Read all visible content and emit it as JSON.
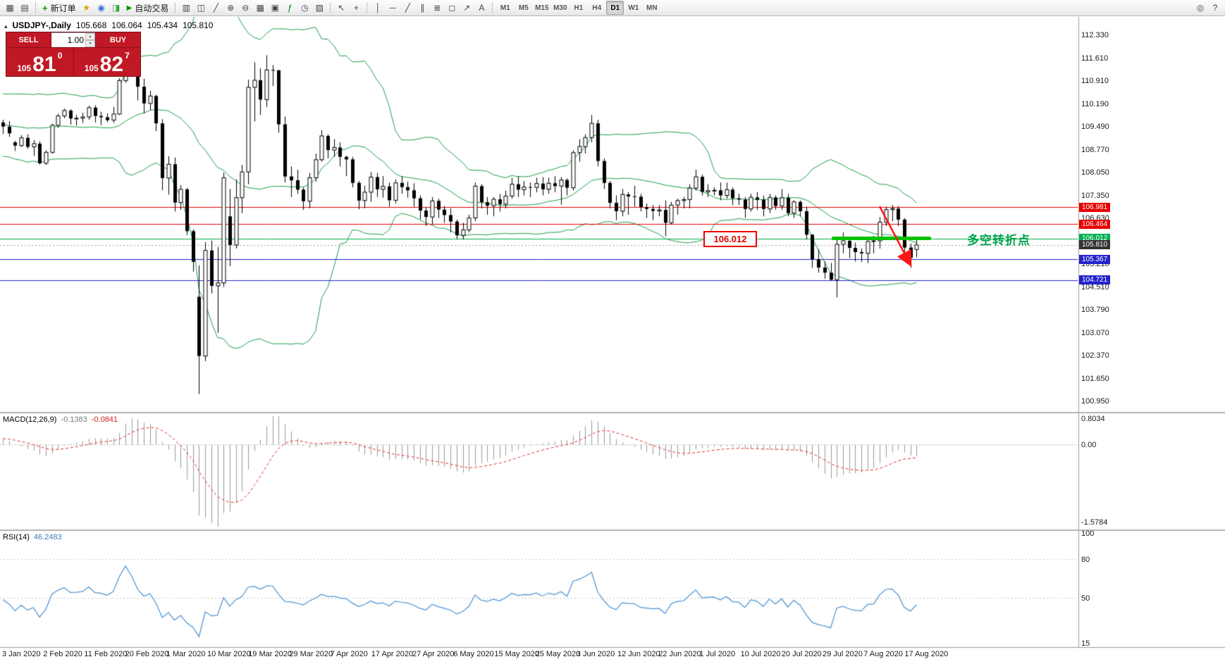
{
  "toolbar": {
    "left_icons": [
      "new-chart-icon",
      "chart-profile-icon"
    ],
    "new_order": "新订单",
    "mid_icons": [
      "favorites-icon",
      "market-watch-icon",
      "data-window-icon"
    ],
    "autotrade": "自动交易",
    "chart_icons": [
      "bar-chart-icon",
      "candlestick-icon",
      "line-chart-icon",
      "zoom-in-icon",
      "zoom-out-icon",
      "tile-windows-icon",
      "auto-arrange-icon",
      "indicators-icon",
      "periods-icon",
      "templates-icon"
    ],
    "cursor_icons": [
      "cursor-icon",
      "crosshair-icon"
    ],
    "draw_icons": [
      "vertical-line-icon",
      "horizontal-line-icon",
      "trendline-icon",
      "equidistant-channel-icon",
      "fibonacci-icon",
      "shapes-icon",
      "arrows-icon",
      "text-icon"
    ],
    "timeframes": [
      "M1",
      "M5",
      "M15",
      "M30",
      "H1",
      "H4",
      "D1",
      "W1",
      "MN"
    ],
    "active_timeframe": "D1",
    "right_icons": [
      "search-icon",
      "help-icon"
    ]
  },
  "chart_header": {
    "collapse_icon": "▴",
    "symbol": "USDJPY-,Daily",
    "open": "105.668",
    "high": "106.064",
    "low": "105.434",
    "close": "105.810"
  },
  "panel": {
    "sell_label": "SELL",
    "buy_label": "BUY",
    "volume": "1.00",
    "sell_price": {
      "small": "105",
      "big": "81",
      "sup": "0"
    },
    "buy_price": {
      "small": "105",
      "big": "82",
      "sup": "7"
    }
  },
  "price_scale": [
    "112.330",
    "111.610",
    "110.910",
    "110.190",
    "109.490",
    "108.770",
    "108.050",
    "107.350",
    "106.630",
    "105.930",
    "105.210",
    "104.510",
    "103.790",
    "103.070",
    "102.370",
    "101.650",
    "100.950"
  ],
  "price_tags": [
    {
      "text": "106.981",
      "value": 106.981,
      "bg": "#e60000"
    },
    {
      "text": "106.464",
      "value": 106.464,
      "bg": "#e60000"
    },
    {
      "text": "106.012",
      "value": 106.012,
      "bg": "#00b050"
    },
    {
      "text": "105.810",
      "value": 105.81,
      "bg": "#333333"
    },
    {
      "text": "105.367",
      "value": 105.367,
      "bg": "#2323cc"
    },
    {
      "text": "104.721",
      "value": 104.721,
      "bg": "#2323cc"
    }
  ],
  "dates": [
    "3 Jan 2020",
    "2 Feb 2020",
    "11 Feb 2020",
    "20 Feb 2020",
    "1 Mar 2020",
    "10 Mar 2020",
    "19 Mar 2020",
    "29 Mar 2020",
    "7 Apr 2020",
    "17 Apr 2020",
    "27 Apr 2020",
    "6 May 2020",
    "15 May 2020",
    "25 May 2020",
    "3 Jun 2020",
    "12 Jun 2020",
    "22 Jun 2020",
    "1 Jul 2020",
    "10 Jul 2020",
    "20 Jul 2020",
    "29 Jul 2020",
    "7 Aug 2020",
    "17 Aug 2020"
  ],
  "macd": {
    "label": "MACD(12,26,9)",
    "value1": "-0.1383",
    "value2": "-0.0841",
    "scale_top": "0.8034",
    "scale_zero": "0.00",
    "scale_bottom": "-1.5784"
  },
  "rsi": {
    "label": "RSI(14)",
    "value": "46.2483",
    "scale_values": [
      100,
      80,
      50,
      15
    ],
    "levels": [
      80,
      50
    ]
  },
  "annotations": {
    "price_box": "106.012",
    "turning_point": "多空转折点"
  },
  "colors": {
    "bollinger": "#1b9e4b",
    "macd_hist": "#9a9a9a",
    "macd_signal": "#e03030",
    "rsi_line": "#4a90d2",
    "line_red": "#e60000",
    "line_blue": "#2323cc",
    "line_green": "#00b050",
    "bar_green": "#00c300",
    "arrow_red": "#ff1515",
    "panel_red": "#c01825"
  },
  "chart_data": {
    "type": "candlestick",
    "symbol": "USDJPY",
    "timeframe": "Daily",
    "ylim": [
      100.95,
      112.33
    ],
    "indicators": [
      "Bollinger Bands(20,2)",
      "MACD(12,26,9)",
      "RSI(14)"
    ],
    "hlines": [
      {
        "value": 106.981,
        "color": "#e60000"
      },
      {
        "value": 106.464,
        "color": "#e60000"
      },
      {
        "value": 106.012,
        "color": "#00b050"
      },
      {
        "value": 105.367,
        "color": "#2323cc"
      },
      {
        "value": 104.721,
        "color": "#2323cc"
      },
      {
        "value": 105.81,
        "color": "#999999",
        "dash": true
      }
    ],
    "preroll_closes": [
      109.4,
      109.48,
      109.55,
      109.5,
      109.58,
      108.72,
      108.56,
      108.45,
      108.95,
      109.45,
      109.92,
      110.02,
      109.95,
      110.1,
      109.88,
      109.78,
      110.15,
      109.85,
      109.72,
      109.62
    ],
    "candles": [
      [
        109.62,
        109.7,
        109.26,
        109.49
      ],
      [
        109.49,
        109.66,
        109.17,
        109.28
      ],
      [
        109.0,
        109.05,
        108.73,
        108.9
      ],
      [
        108.9,
        109.22,
        108.85,
        109.14
      ],
      [
        109.14,
        109.25,
        108.8,
        108.86
      ],
      [
        108.86,
        109.07,
        108.58,
        108.96
      ],
      [
        108.96,
        109.03,
        108.31,
        108.35
      ],
      [
        108.35,
        108.75,
        108.3,
        108.69
      ],
      [
        108.69,
        109.58,
        108.65,
        109.53
      ],
      [
        109.53,
        109.89,
        109.45,
        109.82
      ],
      [
        109.82,
        110.05,
        109.75,
        109.99
      ],
      [
        109.99,
        110.03,
        109.55,
        109.74
      ],
      [
        109.74,
        109.85,
        109.52,
        109.75
      ],
      [
        109.75,
        109.92,
        109.6,
        109.79
      ],
      [
        109.79,
        110.14,
        109.7,
        110.08
      ],
      [
        110.08,
        110.15,
        109.62,
        109.82
      ],
      [
        109.82,
        109.95,
        109.53,
        109.78
      ],
      [
        109.78,
        109.9,
        109.63,
        109.69
      ],
      [
        109.69,
        110.1,
        109.6,
        109.88
      ],
      [
        109.88,
        111.0,
        109.85,
        110.92
      ],
      [
        110.92,
        112.22,
        110.85,
        112.1
      ],
      [
        112.1,
        112.18,
        111.46,
        111.59
      ],
      [
        111.2,
        111.25,
        110.3,
        110.73
      ],
      [
        110.73,
        110.98,
        109.9,
        110.21
      ],
      [
        110.21,
        110.6,
        110.0,
        110.44
      ],
      [
        110.44,
        110.48,
        109.35,
        109.59
      ],
      [
        109.59,
        109.72,
        107.51,
        107.89
      ],
      [
        107.89,
        108.57,
        107.38,
        108.32
      ],
      [
        108.32,
        108.53,
        106.85,
        107.13
      ],
      [
        107.13,
        107.67,
        106.9,
        107.54
      ],
      [
        107.54,
        107.58,
        106.12,
        106.24
      ],
      [
        106.24,
        106.3,
        104.98,
        105.29
      ],
      [
        104.2,
        105.18,
        101.18,
        102.36
      ],
      [
        102.36,
        105.9,
        102.2,
        105.64
      ],
      [
        105.64,
        105.95,
        104.3,
        104.54
      ],
      [
        104.54,
        105.75,
        103.08,
        104.63
      ],
      [
        104.63,
        108.06,
        104.5,
        107.9
      ],
      [
        106.7,
        107.55,
        105.15,
        105.81
      ],
      [
        105.81,
        107.85,
        105.7,
        107.28
      ],
      [
        107.28,
        108.3,
        106.8,
        108.08
      ],
      [
        108.08,
        110.95,
        107.7,
        110.71
      ],
      [
        110.71,
        111.49,
        109.65,
        110.93
      ],
      [
        110.93,
        111.3,
        109.85,
        110.33
      ],
      [
        110.33,
        111.71,
        110.1,
        111.25
      ],
      [
        111.25,
        111.4,
        110.75,
        111.24
      ],
      [
        111.24,
        111.25,
        109.3,
        109.56
      ],
      [
        109.56,
        109.8,
        107.75,
        107.94
      ],
      [
        107.94,
        108.25,
        107.3,
        107.82
      ],
      [
        107.82,
        108.15,
        107.4,
        107.53
      ],
      [
        107.53,
        107.6,
        106.9,
        107.17
      ],
      [
        107.17,
        108.05,
        106.95,
        107.9
      ],
      [
        107.9,
        108.65,
        107.78,
        108.46
      ],
      [
        108.46,
        109.38,
        108.4,
        109.2
      ],
      [
        109.2,
        109.25,
        108.5,
        108.76
      ],
      [
        108.76,
        109.1,
        108.55,
        108.84
      ],
      [
        108.84,
        109.0,
        108.25,
        108.55
      ],
      [
        108.55,
        108.58,
        107.95,
        108.47
      ],
      [
        108.47,
        108.55,
        107.6,
        107.74
      ],
      [
        107.74,
        107.8,
        106.92,
        107.19
      ],
      [
        107.19,
        107.65,
        106.95,
        107.45
      ],
      [
        107.45,
        108.08,
        107.15,
        107.92
      ],
      [
        107.92,
        108.05,
        107.3,
        107.54
      ],
      [
        107.54,
        107.95,
        107.28,
        107.63
      ],
      [
        107.63,
        107.75,
        107.0,
        107.2
      ],
      [
        107.2,
        107.85,
        107.1,
        107.74
      ],
      [
        107.74,
        107.95,
        107.4,
        107.61
      ],
      [
        107.61,
        107.78,
        107.28,
        107.51
      ],
      [
        107.51,
        107.73,
        107.0,
        107.26
      ],
      [
        107.26,
        107.35,
        106.6,
        106.88
      ],
      [
        106.88,
        106.98,
        106.4,
        106.68
      ],
      [
        106.68,
        107.3,
        106.45,
        107.18
      ],
      [
        107.18,
        107.25,
        106.65,
        106.91
      ],
      [
        106.91,
        107.02,
        106.5,
        106.74
      ],
      [
        106.74,
        106.95,
        106.2,
        106.54
      ],
      [
        106.54,
        106.6,
        105.99,
        106.11
      ],
      [
        106.11,
        106.5,
        105.98,
        106.28
      ],
      [
        106.28,
        106.75,
        106.2,
        106.65
      ],
      [
        106.65,
        107.75,
        106.55,
        107.64
      ],
      [
        107.64,
        107.7,
        106.95,
        107.14
      ],
      [
        107.14,
        107.3,
        106.75,
        107.03
      ],
      [
        107.03,
        107.3,
        106.7,
        107.23
      ],
      [
        107.23,
        107.4,
        106.85,
        107.08
      ],
      [
        107.08,
        107.5,
        106.95,
        107.33
      ],
      [
        107.33,
        107.9,
        107.25,
        107.7
      ],
      [
        107.7,
        107.95,
        107.3,
        107.53
      ],
      [
        107.53,
        107.8,
        107.35,
        107.61
      ],
      [
        107.61,
        107.75,
        107.3,
        107.6
      ],
      [
        107.6,
        107.9,
        107.45,
        107.72
      ],
      [
        107.72,
        107.92,
        107.35,
        107.54
      ],
      [
        107.54,
        107.9,
        107.4,
        107.73
      ],
      [
        107.73,
        107.95,
        107.45,
        107.64
      ],
      [
        107.64,
        107.92,
        107.06,
        107.83
      ],
      [
        107.83,
        107.88,
        107.35,
        107.59
      ],
      [
        107.59,
        108.75,
        107.5,
        108.68
      ],
      [
        108.68,
        109.1,
        108.4,
        108.87
      ],
      [
        108.87,
        109.25,
        108.65,
        109.15
      ],
      [
        109.15,
        109.85,
        109.0,
        109.59
      ],
      [
        109.59,
        109.7,
        108.25,
        108.42
      ],
      [
        108.42,
        108.5,
        107.55,
        107.74
      ],
      [
        107.74,
        107.8,
        106.95,
        107.12
      ],
      [
        107.12,
        107.35,
        106.58,
        106.86
      ],
      [
        106.86,
        107.55,
        106.7,
        107.38
      ],
      [
        107.38,
        107.45,
        106.75,
        107.32
      ],
      [
        107.32,
        107.65,
        107.0,
        107.31
      ],
      [
        107.31,
        107.4,
        106.85,
        106.99
      ],
      [
        106.99,
        107.1,
        106.65,
        106.93
      ],
      [
        106.93,
        107.05,
        106.58,
        106.87
      ],
      [
        106.87,
        107.05,
        106.7,
        106.9
      ],
      [
        106.9,
        107.2,
        106.08,
        106.5
      ],
      [
        106.5,
        107.15,
        106.45,
        107.05
      ],
      [
        107.05,
        107.25,
        106.75,
        107.19
      ],
      [
        107.19,
        107.3,
        106.95,
        107.22
      ],
      [
        107.22,
        107.7,
        106.95,
        107.58
      ],
      [
        107.58,
        108.15,
        107.5,
        107.93
      ],
      [
        107.93,
        108.0,
        107.35,
        107.46
      ],
      [
        107.46,
        107.7,
        107.3,
        107.5
      ],
      [
        107.5,
        107.6,
        107.35,
        107.51
      ],
      [
        107.51,
        107.75,
        107.2,
        107.35
      ],
      [
        107.35,
        107.75,
        107.25,
        107.53
      ],
      [
        107.53,
        107.6,
        107.05,
        107.26
      ],
      [
        107.26,
        107.4,
        107.05,
        107.22
      ],
      [
        107.22,
        107.3,
        106.65,
        106.93
      ],
      [
        106.93,
        107.4,
        106.85,
        107.29
      ],
      [
        107.29,
        107.45,
        106.9,
        107.22
      ],
      [
        107.22,
        107.35,
        106.7,
        106.93
      ],
      [
        106.93,
        107.4,
        106.8,
        107.29
      ],
      [
        107.29,
        107.35,
        106.9,
        107.02
      ],
      [
        107.02,
        107.55,
        106.9,
        107.28
      ],
      [
        107.28,
        107.4,
        106.7,
        106.8
      ],
      [
        106.8,
        107.2,
        106.65,
        107.15
      ],
      [
        107.15,
        107.2,
        106.7,
        106.86
      ],
      [
        106.86,
        107.0,
        105.98,
        106.13
      ],
      [
        106.13,
        106.15,
        105.1,
        105.37
      ],
      [
        105.37,
        105.68,
        104.95,
        105.11
      ],
      [
        105.11,
        105.3,
        104.76,
        104.95
      ],
      [
        104.95,
        105.25,
        104.7,
        104.73
      ],
      [
        104.73,
        106.05,
        104.18,
        105.83
      ],
      [
        105.83,
        106.2,
        105.55,
        105.94
      ],
      [
        105.94,
        106.05,
        105.4,
        105.72
      ],
      [
        105.72,
        105.88,
        105.3,
        105.59
      ],
      [
        105.59,
        105.7,
        105.28,
        105.55
      ],
      [
        105.55,
        106.05,
        105.25,
        105.92
      ],
      [
        105.92,
        106.1,
        105.55,
        105.94
      ],
      [
        105.94,
        106.68,
        105.7,
        106.52
      ],
      [
        106.52,
        107.0,
        106.4,
        106.91
      ],
      [
        106.91,
        107.05,
        106.55,
        106.94
      ],
      [
        106.94,
        107.02,
        106.4,
        106.6
      ],
      [
        106.6,
        106.65,
        105.55,
        105.73
      ],
      [
        105.73,
        105.85,
        105.1,
        105.41
      ],
      [
        105.67,
        106.06,
        105.43,
        105.81
      ]
    ]
  }
}
